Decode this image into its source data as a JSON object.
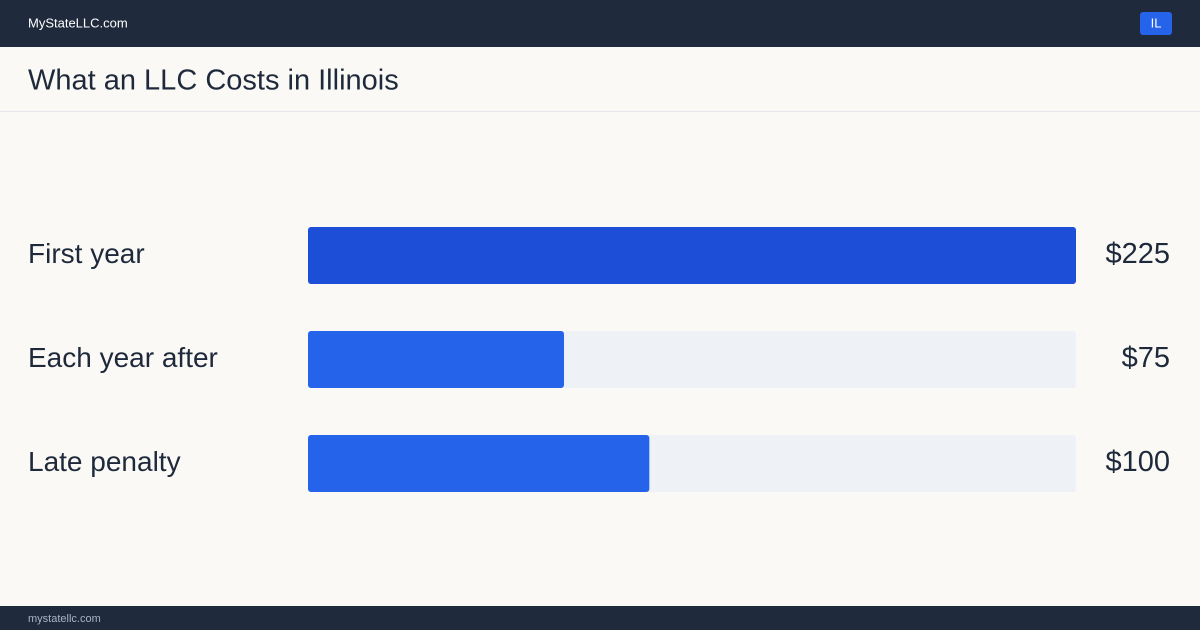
{
  "header": {
    "brand": "MyStateLLC.com",
    "badge": "IL"
  },
  "chart_data": {
    "type": "hbar",
    "title": "What an LLC Costs in Illinois",
    "categories": [
      "First year",
      "Each year after",
      "Late penalty"
    ],
    "values": [
      225,
      75,
      100
    ],
    "value_labels": [
      "$225",
      "$75",
      "$100"
    ],
    "colors": [
      "#1d4ed8",
      "#2563eb",
      "#2563eb"
    ],
    "track_color": "#eef2f7"
  },
  "footer": {
    "url": "mystatellc.com"
  }
}
